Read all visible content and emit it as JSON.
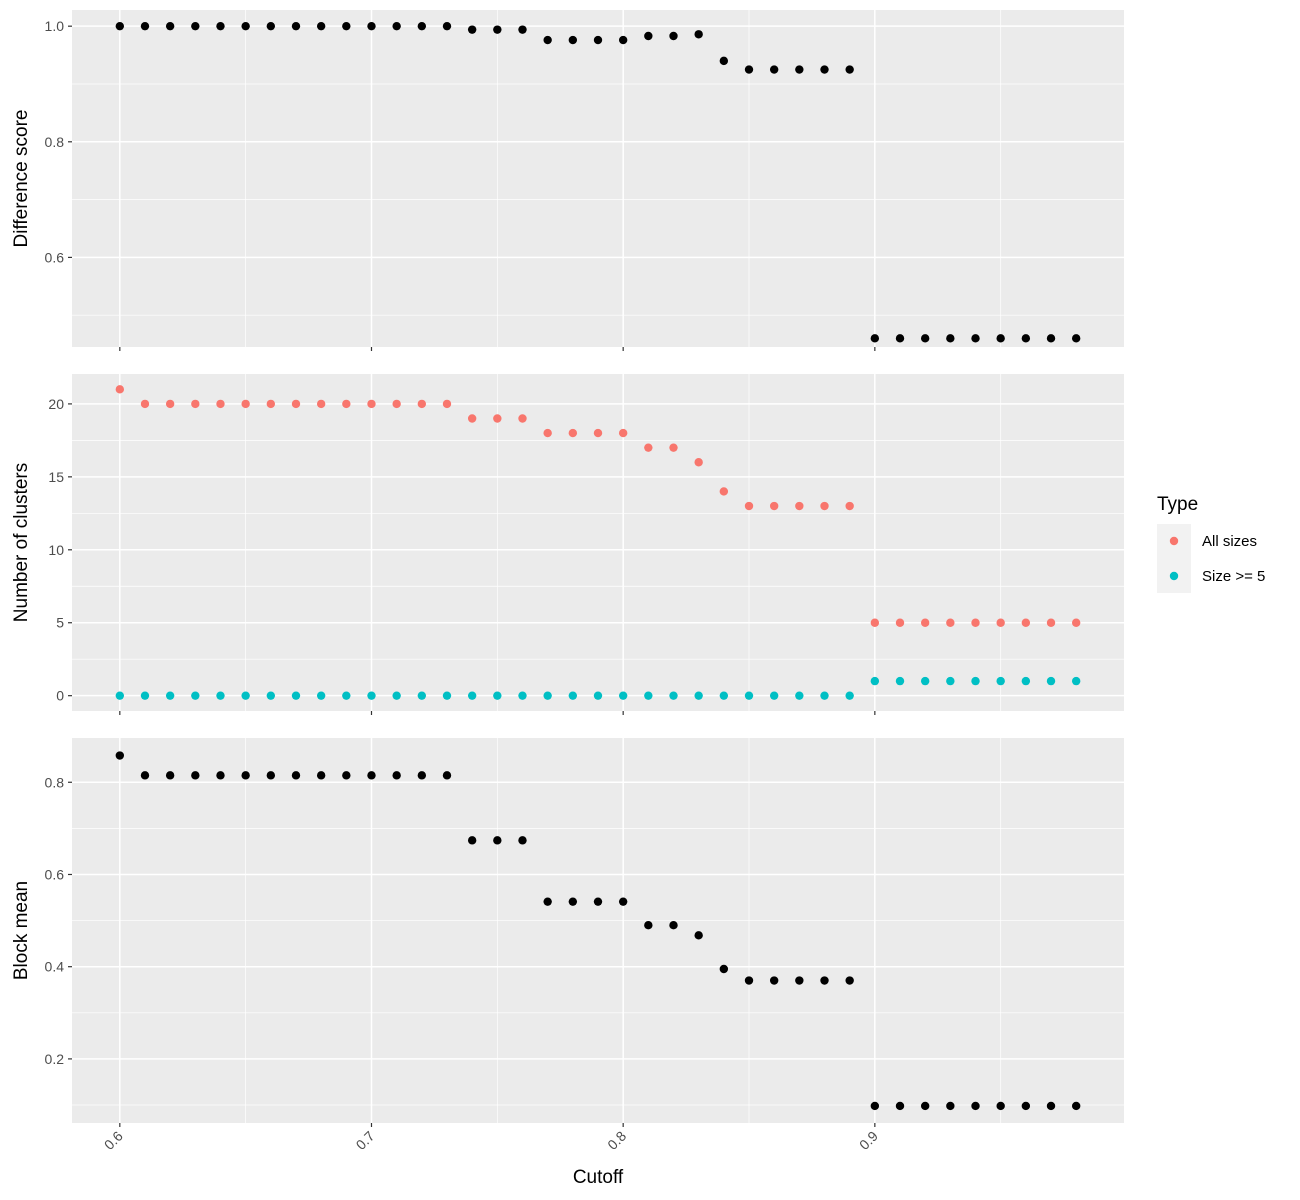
{
  "chart_data": [
    {
      "type": "scatter",
      "panel": "top",
      "xlabel": "",
      "ylabel": "Difference score",
      "xlim": [
        0.581,
        0.999
      ],
      "ylim": [
        0.445,
        1.028
      ],
      "yticks": [
        0.6,
        0.8,
        1.0
      ],
      "ytick_labels": [
        "0.6",
        "0.8",
        "1.0"
      ],
      "x": [
        0.6,
        0.61,
        0.62,
        0.63,
        0.64,
        0.65,
        0.66,
        0.67,
        0.68,
        0.69,
        0.7,
        0.71,
        0.72,
        0.73,
        0.74,
        0.75,
        0.76,
        0.77,
        0.78,
        0.79,
        0.8,
        0.81,
        0.82,
        0.83,
        0.84,
        0.85,
        0.86,
        0.87,
        0.88,
        0.89,
        0.9,
        0.91,
        0.92,
        0.93,
        0.94,
        0.95,
        0.96,
        0.97,
        0.98
      ],
      "series": [
        {
          "color": "#000000",
          "values": [
            1.0,
            1.0,
            1.0,
            1.0,
            1.0,
            1.0,
            1.0,
            1.0,
            1.0,
            1.0,
            1.0,
            1.0,
            1.0,
            1.0,
            0.994,
            0.994,
            0.994,
            0.976,
            0.976,
            0.976,
            0.976,
            0.983,
            0.983,
            0.986,
            0.94,
            0.925,
            0.925,
            0.925,
            0.925,
            0.925,
            0.46,
            0.46,
            0.46,
            0.46,
            0.46,
            0.46,
            0.46,
            0.46,
            0.46
          ]
        }
      ]
    },
    {
      "type": "scatter",
      "panel": "middle",
      "xlabel": "",
      "ylabel": "Number of clusters",
      "xlim": [
        0.581,
        0.999
      ],
      "ylim": [
        -1.05,
        22.05
      ],
      "yticks": [
        0,
        5,
        10,
        15,
        20
      ],
      "ytick_labels": [
        "0",
        "5",
        "10",
        "15",
        "20"
      ],
      "x": [
        0.6,
        0.61,
        0.62,
        0.63,
        0.64,
        0.65,
        0.66,
        0.67,
        0.68,
        0.69,
        0.7,
        0.71,
        0.72,
        0.73,
        0.74,
        0.75,
        0.76,
        0.77,
        0.78,
        0.79,
        0.8,
        0.81,
        0.82,
        0.83,
        0.84,
        0.85,
        0.86,
        0.87,
        0.88,
        0.89,
        0.9,
        0.91,
        0.92,
        0.93,
        0.94,
        0.95,
        0.96,
        0.97,
        0.98
      ],
      "series": [
        {
          "name": "All sizes",
          "color": "#F8766D",
          "values": [
            21,
            20,
            20,
            20,
            20,
            20,
            20,
            20,
            20,
            20,
            20,
            20,
            20,
            20,
            19,
            19,
            19,
            18,
            18,
            18,
            18,
            17,
            17,
            16,
            14,
            13,
            13,
            13,
            13,
            13,
            5,
            5,
            5,
            5,
            5,
            5,
            5,
            5,
            5
          ]
        },
        {
          "name": "Size >= 5",
          "color": "#00BFC4",
          "values": [
            0,
            0,
            0,
            0,
            0,
            0,
            0,
            0,
            0,
            0,
            0,
            0,
            0,
            0,
            0,
            0,
            0,
            0,
            0,
            0,
            0,
            0,
            0,
            0,
            0,
            0,
            0,
            0,
            0,
            0,
            1,
            1,
            1,
            1,
            1,
            1,
            1,
            1,
            1
          ]
        }
      ]
    },
    {
      "type": "scatter",
      "panel": "bottom",
      "xlabel": "Cutoff",
      "ylabel": "Block mean",
      "xlim": [
        0.581,
        0.999
      ],
      "ylim": [
        0.061,
        0.896
      ],
      "yticks": [
        0.2,
        0.4,
        0.6,
        0.8
      ],
      "ytick_labels": [
        "0.2",
        "0.4",
        "0.6",
        "0.8"
      ],
      "xticks": [
        0.6,
        0.7,
        0.8,
        0.9
      ],
      "xtick_labels": [
        "0.6",
        "0.7",
        "0.8",
        "0.9"
      ],
      "x": [
        0.6,
        0.61,
        0.62,
        0.63,
        0.64,
        0.65,
        0.66,
        0.67,
        0.68,
        0.69,
        0.7,
        0.71,
        0.72,
        0.73,
        0.74,
        0.75,
        0.76,
        0.77,
        0.78,
        0.79,
        0.8,
        0.81,
        0.82,
        0.83,
        0.84,
        0.85,
        0.86,
        0.87,
        0.88,
        0.89,
        0.9,
        0.91,
        0.92,
        0.93,
        0.94,
        0.95,
        0.96,
        0.97,
        0.98
      ],
      "series": [
        {
          "color": "#000000",
          "values": [
            0.858,
            0.815,
            0.815,
            0.815,
            0.815,
            0.815,
            0.815,
            0.815,
            0.815,
            0.815,
            0.815,
            0.815,
            0.815,
            0.815,
            0.674,
            0.674,
            0.674,
            0.541,
            0.541,
            0.541,
            0.541,
            0.49,
            0.49,
            0.468,
            0.395,
            0.37,
            0.37,
            0.37,
            0.37,
            0.37,
            0.098,
            0.098,
            0.098,
            0.098,
            0.098,
            0.098,
            0.098,
            0.098,
            0.098
          ]
        }
      ]
    }
  ],
  "legend": {
    "title": "Type",
    "position": "right",
    "items": [
      {
        "label": "All sizes",
        "color": "#F8766D"
      },
      {
        "label": "Size >= 5",
        "color": "#00BFC4"
      }
    ]
  }
}
